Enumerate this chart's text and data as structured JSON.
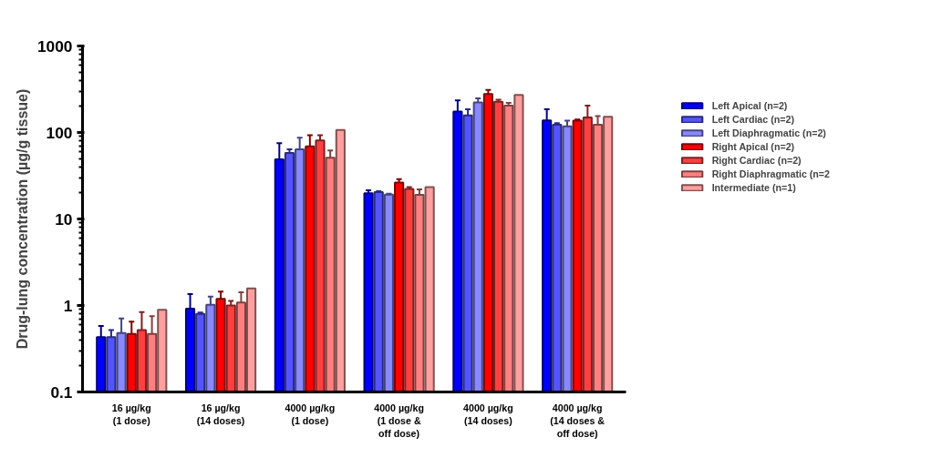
{
  "chart_data": {
    "type": "bar",
    "ylabel": "Drug-lung concentration (µg/g tissue)",
    "categories": [
      "16 µg/kg (1 dose)",
      "16 µg/kg (14 doses)",
      "4000 µg/kg (1 dose)",
      "4000 µg/kg (1 dose & off dose)",
      "4000 µg/kg (14 doses)",
      "4000 µg/kg (14 doses & off dose)"
    ],
    "log": true,
    "ylim": [
      0.1,
      1000
    ],
    "yticks": [
      0.1,
      1,
      10,
      100,
      1000
    ],
    "grid": false,
    "legend": "right",
    "series": [
      {
        "name": "Left Apical (n=2)",
        "color": "#0000ff",
        "values": [
          0.43,
          0.92,
          49,
          19.8,
          175,
          138
        ],
        "errors": [
          0.15,
          0.43,
          26,
          1.6,
          60,
          47
        ]
      },
      {
        "name": "Left Cardiac (n=2)",
        "color": "#5555ff",
        "values": [
          0.43,
          0.8,
          58,
          20.5,
          158,
          123
        ],
        "errors": [
          0.09,
          0.03,
          6,
          0.5,
          27,
          5
        ]
      },
      {
        "name": "Left Diaphragmatic (n=2)",
        "color": "#8888ff",
        "values": [
          0.48,
          1.02,
          64,
          19.1,
          222,
          118
        ],
        "errors": [
          0.23,
          0.25,
          23,
          0.5,
          26,
          19
        ]
      },
      {
        "name": "Right Apical (n=2)",
        "color": "#ff0000",
        "values": [
          0.47,
          1.19,
          69,
          26.3,
          279,
          137
        ],
        "errors": [
          0.18,
          0.26,
          24,
          2.6,
          31,
          4
        ]
      },
      {
        "name": "Right Cardiac (n=2)",
        "color": "#ff4040",
        "values": [
          0.52,
          1.0,
          81,
          22.2,
          226,
          149
        ],
        "errors": [
          0.32,
          0.13,
          12,
          1.2,
          14,
          56
        ]
      },
      {
        "name": "Right Diaphragmatic (n=2",
        "color": "#ff8080",
        "values": [
          0.47,
          1.08,
          51,
          19.0,
          204,
          123
        ],
        "errors": [
          0.28,
          0.34,
          11,
          3,
          16,
          32
        ]
      },
      {
        "name": "Intermediate (n=1)",
        "color": "#ffa0a0",
        "values": [
          0.89,
          1.58,
          107,
          23.4,
          271,
          152
        ]
      }
    ]
  }
}
